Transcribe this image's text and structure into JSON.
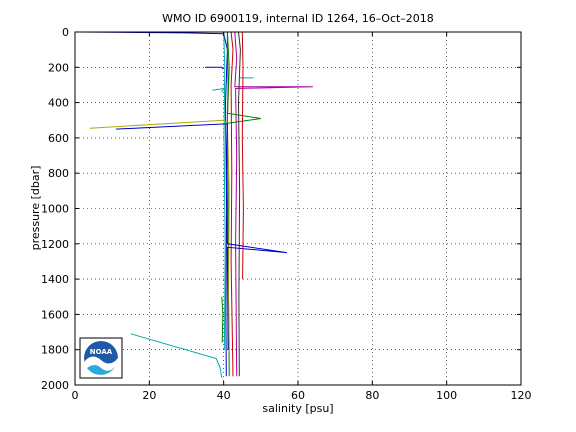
{
  "chart_data": {
    "type": "line",
    "title": "WMO ID 6900119, internal ID 1264, 16–Oct–2018",
    "xlabel": "salinity [psu]",
    "ylabel": "pressure [dbar]",
    "xlim": [
      0,
      120
    ],
    "ylim": [
      0,
      2000
    ],
    "y_reversed": true,
    "grid": true,
    "x_ticks": [
      0,
      20,
      40,
      60,
      80,
      100,
      120
    ],
    "y_ticks": [
      0,
      200,
      400,
      600,
      800,
      1000,
      1200,
      1400,
      1600,
      1800,
      2000
    ],
    "x_tick_labels": [
      "0",
      "20",
      "40",
      "60",
      "80",
      "100",
      "120"
    ],
    "y_tick_labels": [
      "0",
      "200",
      "400",
      "600",
      "800",
      "1000",
      "1200",
      "1400",
      "1600",
      "1800",
      "2000"
    ],
    "logo": {
      "text": "NOAA",
      "position": "bottom-left"
    },
    "series": [
      {
        "color": "#0000cc",
        "points": [
          [
            2,
            0
          ],
          [
            30,
            5
          ],
          [
            40,
            10
          ],
          [
            41,
            100
          ],
          [
            40.5,
            400
          ],
          [
            40.8,
            1000
          ],
          [
            40.6,
            1600
          ],
          [
            40.7,
            1950
          ]
        ]
      },
      {
        "color": "#008000",
        "points": [
          [
            4,
            0
          ],
          [
            20,
            0
          ],
          [
            41,
            0
          ],
          [
            41.5,
            200
          ],
          [
            41,
            500
          ],
          [
            41.2,
            1000
          ],
          [
            41.3,
            1500
          ],
          [
            41.5,
            1950
          ]
        ]
      },
      {
        "color": "#cc0000",
        "points": [
          [
            42,
            0
          ],
          [
            42.5,
            100
          ],
          [
            42,
            300
          ],
          [
            42.2,
            800
          ],
          [
            42,
            1300
          ],
          [
            42.5,
            1950
          ]
        ]
      },
      {
        "color": "#00aaaa",
        "points": [
          [
            40,
            0
          ],
          [
            40.3,
            200
          ],
          [
            40.1,
            600
          ],
          [
            40.4,
            1200
          ],
          [
            40.2,
            1800
          ]
        ]
      },
      {
        "color": "#aa00aa",
        "points": [
          [
            43,
            0
          ],
          [
            43.5,
            150
          ],
          [
            43,
            310
          ],
          [
            64,
            310
          ],
          [
            43.2,
            320
          ],
          [
            43.5,
            700
          ],
          [
            43.2,
            1200
          ],
          [
            43.5,
            1950
          ]
        ]
      },
      {
        "color": "#aaaa00",
        "points": [
          [
            4,
            545
          ],
          [
            40,
            500
          ],
          [
            41,
            520
          ],
          [
            41.5,
            900
          ],
          [
            41.3,
            1500
          ],
          [
            41.6,
            1900
          ]
        ]
      },
      {
        "color": "#333333",
        "points": [
          [
            44,
            0
          ],
          [
            44.5,
            100
          ],
          [
            44,
            400
          ],
          [
            44.3,
            900
          ],
          [
            44.1,
            1500
          ],
          [
            44.2,
            1950
          ]
        ]
      },
      {
        "color": "#0000cc",
        "points": [
          [
            11,
            550
          ],
          [
            41,
            520
          ],
          [
            40.8,
            800
          ],
          [
            41,
            1200
          ],
          [
            57,
            1250
          ],
          [
            41,
            1220
          ],
          [
            41.2,
            1800
          ]
        ]
      },
      {
        "color": "#008000",
        "points": [
          [
            40,
            520
          ],
          [
            50,
            490
          ],
          [
            41,
            460
          ],
          [
            41.2,
            300
          ],
          [
            41,
            100
          ],
          [
            41,
            0
          ]
        ]
      },
      {
        "color": "#00aaaa",
        "points": [
          [
            15,
            1710
          ],
          [
            38,
            1850
          ],
          [
            39,
            1900
          ],
          [
            39.5,
            1960
          ]
        ]
      },
      {
        "color": "#0000cc",
        "points": [
          [
            35,
            200
          ],
          [
            39.5,
            200
          ],
          [
            39.8,
            210
          ]
        ]
      },
      {
        "color": "#00aaaa",
        "points": [
          [
            44,
            260
          ],
          [
            48,
            260
          ]
        ]
      },
      {
        "color": "#00aaaa",
        "points": [
          [
            37,
            330
          ],
          [
            40,
            320
          ],
          [
            39.5,
            340
          ]
        ]
      },
      {
        "color": "#cc0000",
        "points": [
          [
            45,
            0
          ],
          [
            45.2,
            200
          ],
          [
            45,
            600
          ],
          [
            45.3,
            1000
          ],
          [
            45.1,
            1400
          ]
        ]
      },
      {
        "color": "#008000",
        "points": [
          [
            39.5,
            1500
          ],
          [
            39.8,
            1600
          ],
          [
            39.6,
            1760
          ]
        ]
      }
    ]
  }
}
